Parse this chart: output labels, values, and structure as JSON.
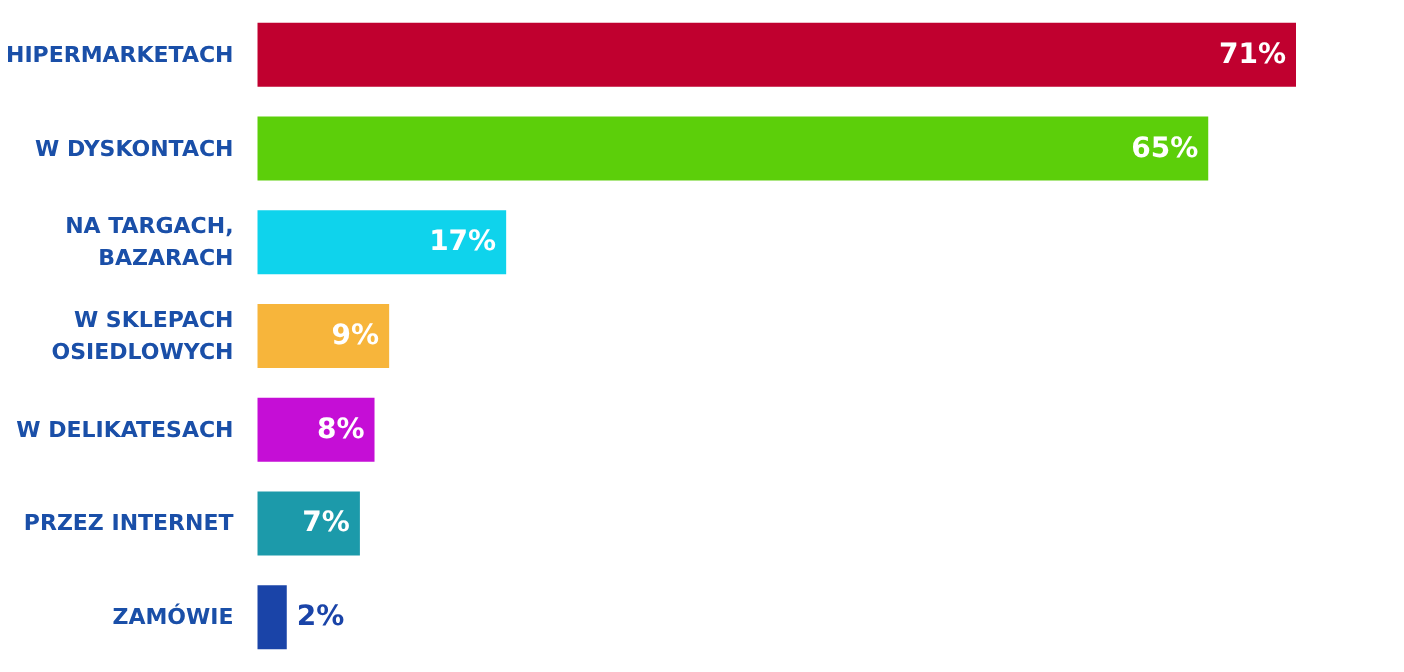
{
  "chart_data": {
    "type": "bar",
    "orientation": "horizontal",
    "categories": [
      "HIPERMARKETACH",
      "W DYSKONTACH",
      "NA TARGACH,\nBAZARACH",
      "W SKLEPACH\nOSIEDLOWYCH",
      "W DELIKATESACH",
      "PRZEZ INTERNET",
      "ZAMÓWIE"
    ],
    "values": [
      71,
      65,
      17,
      9,
      8,
      7,
      2
    ],
    "colors": [
      "#c0002f",
      "#5ccf0a",
      "#0fd3ec",
      "#f7b53b",
      "#c50ed6",
      "#1c9aaa",
      "#1a44a8"
    ],
    "value_labels": [
      "71%",
      "65%",
      "17%",
      "9%",
      "8%",
      "7%",
      "2%"
    ]
  }
}
